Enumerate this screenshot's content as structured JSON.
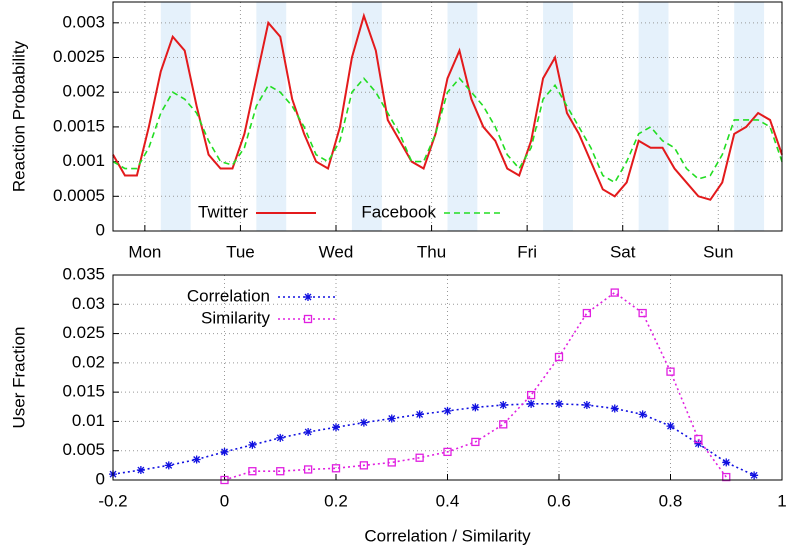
{
  "chart_data": [
    {
      "type": "line",
      "ylabel": "Reaction Probability",
      "xlim": [
        0,
        168
      ],
      "xticks": [
        {
          "value": 8,
          "label": "Mon"
        },
        {
          "value": 32,
          "label": "Tue"
        },
        {
          "value": 56,
          "label": "Wed"
        },
        {
          "value": 80,
          "label": "Thu"
        },
        {
          "value": 104,
          "label": "Fri"
        },
        {
          "value": 128,
          "label": "Sat"
        },
        {
          "value": 152,
          "label": "Sun"
        }
      ],
      "ylim": [
        0,
        0.0033
      ],
      "yticks": [
        0,
        0.0005,
        0.001,
        0.0015,
        0.002,
        0.0025,
        0.003
      ],
      "grid": true,
      "legend": "bottom-left",
      "shaded_spans": [
        [
          12,
          19.5
        ],
        [
          36,
          43.5
        ],
        [
          60,
          67.5
        ],
        [
          84,
          91.5
        ],
        [
          108,
          115.5
        ],
        [
          132,
          139.5
        ],
        [
          156,
          163.5
        ]
      ],
      "shade_color": "#e5f1fb",
      "x": [
        0,
        3,
        6,
        9,
        12,
        15,
        18,
        21,
        24,
        27,
        30,
        33,
        36,
        39,
        42,
        45,
        48,
        51,
        54,
        57,
        60,
        63,
        66,
        69,
        72,
        75,
        78,
        81,
        84,
        87,
        90,
        93,
        96,
        99,
        102,
        105,
        108,
        111,
        114,
        117,
        120,
        123,
        126,
        129,
        132,
        135,
        138,
        141,
        144,
        147,
        150,
        153,
        156,
        159,
        162,
        165,
        168
      ],
      "series": [
        {
          "name": "Twitter",
          "color": "#e31a1c",
          "dash": "solid",
          "values": [
            0.0011,
            0.0008,
            0.0008,
            0.0015,
            0.0023,
            0.0028,
            0.0026,
            0.0018,
            0.0011,
            0.0009,
            0.0009,
            0.0014,
            0.0022,
            0.003,
            0.0028,
            0.0019,
            0.0014,
            0.001,
            0.0009,
            0.0015,
            0.0025,
            0.0031,
            0.0026,
            0.0016,
            0.0013,
            0.001,
            0.0009,
            0.0014,
            0.0022,
            0.0026,
            0.0019,
            0.0015,
            0.0013,
            0.0009,
            0.0008,
            0.0013,
            0.0022,
            0.0025,
            0.0017,
            0.0014,
            0.001,
            0.0006,
            0.0005,
            0.0007,
            0.0013,
            0.0012,
            0.0012,
            0.0009,
            0.0007,
            0.0005,
            0.00045,
            0.0007,
            0.0014,
            0.0015,
            0.0017,
            0.0016,
            0.0011
          ]
        },
        {
          "name": "Facebook",
          "color": "#22dd22",
          "dash": "dashed",
          "values": [
            0.001,
            0.0009,
            0.0009,
            0.0012,
            0.0017,
            0.002,
            0.0019,
            0.0017,
            0.0013,
            0.001,
            0.00095,
            0.0012,
            0.0018,
            0.0021,
            0.002,
            0.0018,
            0.0015,
            0.0011,
            0.001,
            0.0013,
            0.002,
            0.0022,
            0.002,
            0.0017,
            0.0014,
            0.001,
            0.001,
            0.0014,
            0.002,
            0.0022,
            0.002,
            0.0018,
            0.0015,
            0.0011,
            0.0009,
            0.0012,
            0.0019,
            0.0021,
            0.0018,
            0.0015,
            0.0012,
            0.0008,
            0.0007,
            0.001,
            0.0014,
            0.0015,
            0.0013,
            0.0012,
            0.0009,
            0.00075,
            0.0008,
            0.0011,
            0.0016,
            0.0016,
            0.0016,
            0.0015,
            0.001
          ]
        }
      ]
    },
    {
      "type": "line",
      "xlabel": "Correlation / Similarity",
      "ylabel": "User Fraction",
      "xlim": [
        -0.2,
        1
      ],
      "xticks": [
        -0.2,
        0,
        0.2,
        0.4,
        0.6,
        0.8,
        1
      ],
      "ylim": [
        0,
        0.035
      ],
      "yticks": [
        0,
        0.005,
        0.01,
        0.015,
        0.02,
        0.025,
        0.03,
        0.035
      ],
      "grid": true,
      "legend": "top-left",
      "series": [
        {
          "name": "Correlation",
          "color": "#1010e0",
          "dash": "dotted",
          "marker": "star",
          "x": [
            -0.2,
            -0.15,
            -0.1,
            -0.05,
            0,
            0.05,
            0.1,
            0.15,
            0.2,
            0.25,
            0.3,
            0.35,
            0.4,
            0.45,
            0.5,
            0.55,
            0.6,
            0.65,
            0.7,
            0.75,
            0.8,
            0.85,
            0.9,
            0.95
          ],
          "values": [
            0.001,
            0.0017,
            0.0025,
            0.0035,
            0.0048,
            0.006,
            0.0072,
            0.0082,
            0.009,
            0.0098,
            0.0105,
            0.0112,
            0.0118,
            0.0124,
            0.0128,
            0.013,
            0.013,
            0.0128,
            0.0122,
            0.0112,
            0.0092,
            0.0062,
            0.003,
            0.0008
          ]
        },
        {
          "name": "Similarity",
          "color": "#e020e0",
          "dash": "dotted",
          "marker": "square",
          "x": [
            0,
            0.05,
            0.1,
            0.15,
            0.2,
            0.25,
            0.3,
            0.35,
            0.4,
            0.45,
            0.5,
            0.55,
            0.6,
            0.65,
            0.7,
            0.75,
            0.8,
            0.85,
            0.9
          ],
          "values": [
            0,
            0.0015,
            0.0015,
            0.0018,
            0.002,
            0.0025,
            0.003,
            0.0038,
            0.0048,
            0.0065,
            0.0095,
            0.0145,
            0.021,
            0.0285,
            0.032,
            0.0285,
            0.0185,
            0.007,
            0.0005
          ]
        }
      ]
    }
  ]
}
